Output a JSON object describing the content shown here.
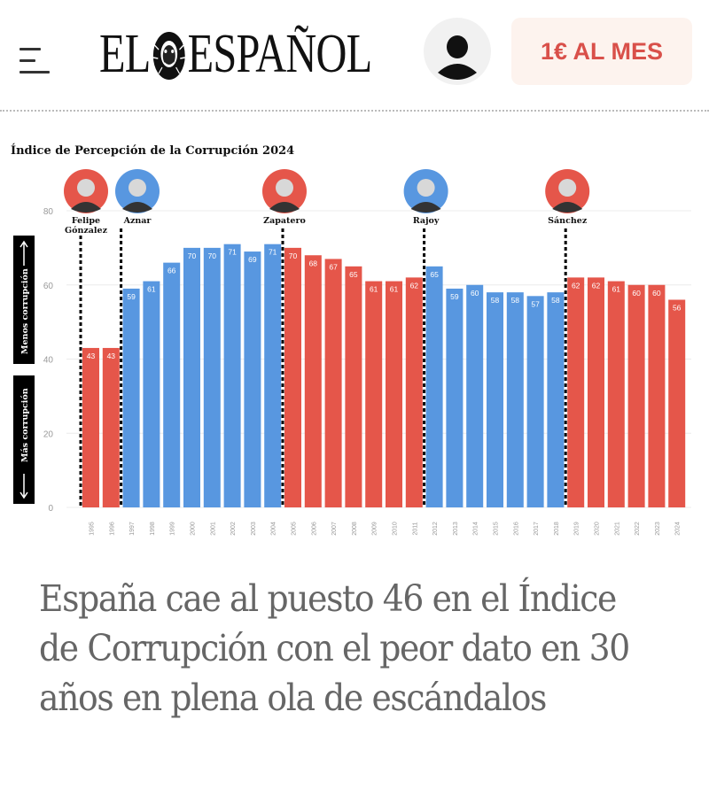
{
  "header": {
    "menu_icon": "hamburger-menu-icon",
    "logo_text_left": "EL",
    "logo_text_right": "ESPAÑOL",
    "logo_icon": "lion-icon",
    "user_icon": "user-icon",
    "subscribe_label": "1€ AL MES",
    "subscribe_color": "#d9504a",
    "subscribe_bg": "#fdf3ee"
  },
  "article": {
    "headline": "España cae al puesto 46 en el Índice de Corrupción con el peor dato en 30 años en plena ola de escándalos"
  },
  "chart_data": {
    "type": "bar",
    "title": "Índice de Percepción de la Corrupción 2024",
    "xlabel": "",
    "ylabel": "",
    "ylim": [
      0,
      80
    ],
    "yticks": [
      0,
      20,
      40,
      60,
      80
    ],
    "grid": true,
    "side_labels": {
      "up": "Menos corrupción",
      "down": "Más corrupción"
    },
    "categories": [
      "1995",
      "1996",
      "1997",
      "1998",
      "1999",
      "2000",
      "2001",
      "2002",
      "2003",
      "2004",
      "2005",
      "2006",
      "2007",
      "2008",
      "2009",
      "2010",
      "2011",
      "2012",
      "2013",
      "2014",
      "2015",
      "2016",
      "2017",
      "2018",
      "2019",
      "2020",
      "2021",
      "2022",
      "2023",
      "2024"
    ],
    "values": [
      43,
      43,
      59,
      61,
      66,
      70,
      70,
      71,
      69,
      71,
      70,
      68,
      67,
      65,
      61,
      61,
      62,
      65,
      59,
      60,
      58,
      58,
      57,
      58,
      62,
      62,
      61,
      60,
      60,
      56
    ],
    "party": [
      "psoe",
      "psoe",
      "pp",
      "pp",
      "pp",
      "pp",
      "pp",
      "pp",
      "pp",
      "pp",
      "psoe",
      "psoe",
      "psoe",
      "psoe",
      "psoe",
      "psoe",
      "psoe",
      "pp",
      "pp",
      "pp",
      "pp",
      "pp",
      "pp",
      "pp",
      "psoe",
      "psoe",
      "psoe",
      "psoe",
      "psoe",
      "psoe"
    ],
    "colors": {
      "psoe": "#e5564a",
      "pp": "#5897e0"
    },
    "leaders": [
      {
        "name": "Felipe González",
        "line1": "Felipe",
        "line2": "Gónzalez",
        "start_year": "1995",
        "party": "psoe"
      },
      {
        "name": "Aznar",
        "line1": "Aznar",
        "line2": "",
        "start_year": "1997",
        "party": "pp"
      },
      {
        "name": "Zapatero",
        "line1": "Zapatero",
        "line2": "",
        "start_year": "2005",
        "party": "psoe"
      },
      {
        "name": "Rajoy",
        "line1": "Rajoy",
        "line2": "",
        "start_year": "2012",
        "party": "pp"
      },
      {
        "name": "Sánchez",
        "line1": "Sánchez",
        "line2": "",
        "start_year": "2019",
        "party": "psoe"
      }
    ]
  }
}
